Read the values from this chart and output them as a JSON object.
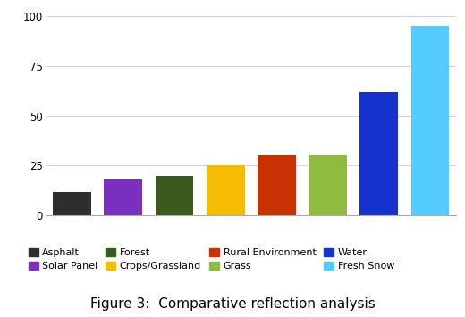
{
  "categories": [
    "Asphalt",
    "Solar Panel",
    "Forest",
    "Crops/Grassland",
    "Rural Environment",
    "Grass",
    "Water",
    "Fresh Snow"
  ],
  "values": [
    12,
    18,
    20,
    25,
    30,
    30,
    62,
    95
  ],
  "bar_colors": [
    "#2e2e2e",
    "#7b2fbe",
    "#3d5a1e",
    "#f5bc00",
    "#c83200",
    "#8fbc40",
    "#1433cc",
    "#55ccff"
  ],
  "ylim": [
    0,
    100
  ],
  "yticks": [
    0,
    25,
    50,
    75,
    100
  ],
  "title": "Figure 3:  Comparative reflection analysis",
  "title_fontsize": 11,
  "legend_labels": [
    "Asphalt",
    "Solar Panel",
    "Forest",
    "Crops/Grassland",
    "Rural Environment",
    "Grass",
    "Water",
    "Fresh Snow"
  ],
  "legend_colors": [
    "#2e2e2e",
    "#7b2fbe",
    "#3d5a1e",
    "#f5bc00",
    "#c83200",
    "#8fbc40",
    "#1433cc",
    "#55ccff"
  ],
  "background_color": "#ffffff",
  "grid_color": "#d0d0d0"
}
